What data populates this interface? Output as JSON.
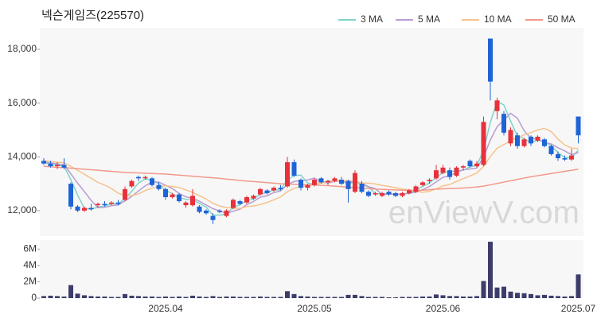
{
  "chart_data": [
    {
      "type": "candlestick",
      "title": "넥슨게임즈(225570)",
      "watermark": "enViewV.com",
      "up_color": "#e8313b",
      "down_color": "#1e64d6",
      "legend": "top-right",
      "grid": false,
      "ylim": [
        11050,
        18800
      ],
      "yticks": [
        {
          "value": 12000,
          "label": "12,000"
        },
        {
          "value": 14000,
          "label": "14,000"
        },
        {
          "value": 16000,
          "label": "16,000"
        },
        {
          "value": 18000,
          "label": "18,000"
        }
      ],
      "open": [
        13850,
        13750,
        13650,
        13700,
        13000,
        12150,
        12000,
        12100,
        12200,
        12250,
        12250,
        12300,
        12400,
        12900,
        13250,
        13200,
        13200,
        12950,
        12800,
        12500,
        12600,
        12200,
        12200,
        12150,
        12000,
        11800,
        12000,
        11800,
        12100,
        12350,
        12300,
        12450,
        12600,
        12750,
        12750,
        12850,
        12900,
        13800,
        13150,
        12850,
        12950,
        13200,
        13050,
        13100,
        13150,
        13100,
        12700,
        13000,
        12700,
        12600,
        12550,
        12700,
        12650,
        12550,
        12650,
        12700,
        12950,
        13100,
        13200,
        13400,
        13500,
        13300,
        13600,
        13850,
        13650,
        13700,
        18400,
        15700,
        15600,
        14500,
        14800,
        14400,
        14750,
        14600,
        14650,
        14400,
        14100,
        13950,
        13900,
        15500
      ],
      "high": [
        13950,
        13850,
        13800,
        13950,
        13050,
        12200,
        12150,
        12250,
        12300,
        12350,
        12350,
        12400,
        12900,
        13150,
        13300,
        13300,
        13250,
        13050,
        12850,
        12650,
        12650,
        12350,
        12800,
        12200,
        12050,
        11900,
        12050,
        12050,
        12450,
        12400,
        12550,
        12600,
        12850,
        12800,
        12900,
        12950,
        14000,
        13900,
        13200,
        13000,
        13200,
        13250,
        13150,
        13250,
        13250,
        13150,
        13500,
        13100,
        12750,
        12700,
        12700,
        12750,
        12700,
        12700,
        12800,
        12950,
        13100,
        13200,
        13700,
        13700,
        13600,
        13650,
        13700,
        13900,
        13850,
        15500,
        18400,
        16200,
        15700,
        15100,
        14900,
        14700,
        14800,
        14800,
        14700,
        14450,
        14200,
        14050,
        14300,
        15500
      ],
      "low": [
        13700,
        13600,
        13550,
        13550,
        12050,
        11950,
        11950,
        12000,
        12100,
        12150,
        12200,
        12200,
        12350,
        12850,
        13100,
        13150,
        12900,
        12750,
        12400,
        12450,
        12300,
        12100,
        12150,
        11900,
        11850,
        11500,
        11900,
        11750,
        12050,
        12200,
        12250,
        12400,
        12550,
        12600,
        12700,
        12750,
        12850,
        13250,
        12750,
        12750,
        12900,
        13000,
        12950,
        13050,
        12950,
        12300,
        12650,
        12650,
        12500,
        12550,
        12500,
        12550,
        12500,
        12500,
        12600,
        12650,
        12900,
        13000,
        13150,
        13350,
        13150,
        13250,
        13500,
        13600,
        13600,
        13650,
        16100,
        15400,
        14800,
        14400,
        14300,
        14350,
        14400,
        14550,
        14350,
        14050,
        13850,
        13850,
        13850,
        14500
      ],
      "close": [
        13750,
        13650,
        13700,
        13600,
        12150,
        12000,
        12100,
        12050,
        12250,
        12200,
        12300,
        12250,
        12800,
        13100,
        13200,
        13250,
        12950,
        12800,
        12500,
        12600,
        12350,
        12300,
        12550,
        11950,
        11900,
        11650,
        11950,
        12000,
        12400,
        12250,
        12500,
        12550,
        12800,
        12650,
        12850,
        12800,
        13800,
        13300,
        12850,
        12950,
        13150,
        13050,
        13100,
        13200,
        13000,
        12800,
        13400,
        12700,
        12550,
        12650,
        12650,
        12600,
        12550,
        12650,
        12750,
        12900,
        13050,
        13150,
        13500,
        13600,
        13250,
        13600,
        13650,
        13650,
        13750,
        15300,
        16800,
        16100,
        14900,
        15000,
        14400,
        14650,
        14500,
        14750,
        14400,
        14100,
        13950,
        13900,
        14050,
        14800
      ],
      "series": [
        {
          "name": "3 MA",
          "color": "#7fd4c9",
          "values": [
            13800,
            13720,
            13700,
            13650,
            13150,
            12580,
            12080,
            12050,
            12130,
            12170,
            12250,
            12250,
            12450,
            12720,
            13030,
            13180,
            13130,
            13000,
            12750,
            12630,
            12480,
            12420,
            12400,
            12270,
            12130,
            11830,
            11830,
            11870,
            12120,
            12220,
            12380,
            12430,
            12620,
            12670,
            12770,
            12770,
            13150,
            13300,
            13320,
            13030,
            12980,
            13050,
            13100,
            13120,
            13100,
            13000,
            13070,
            12970,
            12880,
            12630,
            12620,
            12630,
            12600,
            12600,
            12650,
            12770,
            12900,
            13030,
            13230,
            13420,
            13450,
            13480,
            13500,
            13630,
            13680,
            14230,
            15280,
            16070,
            15930,
            15330,
            14770,
            14680,
            14520,
            14630,
            14550,
            14420,
            14150,
            13980,
            13970,
            14250
          ]
        },
        {
          "name": "5 MA",
          "color": "#b89dd2",
          "values": [
            13800,
            13780,
            13740,
            13700,
            13370,
            13020,
            12710,
            12380,
            12110,
            12120,
            12180,
            12210,
            12360,
            12530,
            12730,
            12920,
            13060,
            13060,
            12940,
            12820,
            12640,
            12510,
            12460,
            12350,
            12210,
            12070,
            11990,
            11890,
            11980,
            12050,
            12220,
            12340,
            12500,
            12550,
            12670,
            12730,
            12980,
            13080,
            13120,
            13140,
            13210,
            13060,
            13020,
            13090,
            13100,
            13030,
            13100,
            13020,
            12890,
            12820,
            12590,
            12630,
            12600,
            12620,
            12640,
            12690,
            12780,
            12900,
            13070,
            13240,
            13300,
            13420,
            13520,
            13550,
            13580,
            13990,
            14630,
            15120,
            15370,
            15620,
            15440,
            14970,
            14690,
            14660,
            14540,
            14480,
            14340,
            14220,
            14080,
            14160
          ]
        },
        {
          "name": "10 MA",
          "color": "#f6c28c",
          "values": [
            13850,
            13830,
            13800,
            13780,
            13650,
            13500,
            13350,
            13200,
            13050,
            12950,
            12820,
            12650,
            12560,
            12560,
            12620,
            12750,
            12830,
            12910,
            12920,
            12900,
            12860,
            12770,
            12680,
            12560,
            12430,
            12270,
            12170,
            12110,
            12100,
            12080,
            12150,
            12170,
            12230,
            12300,
            12400,
            12510,
            12700,
            12830,
            12880,
            12920,
            12980,
            13030,
            13060,
            13110,
            13120,
            13120,
            13080,
            13030,
            13020,
            12990,
            12940,
            12900,
            12850,
            12800,
            12780,
            12720,
            12680,
            12720,
            12810,
            12920,
            12970,
            13080,
            13190,
            13290,
            13400,
            13640,
            14010,
            14320,
            14460,
            14600,
            14710,
            14820,
            14900,
            15000,
            15060,
            14940,
            14660,
            14440,
            14330,
            14310
          ]
        },
        {
          "name": "50 MA",
          "color": "#f2998a",
          "values": [
            13650,
            13630,
            13610,
            13600,
            13580,
            13560,
            13540,
            13520,
            13500,
            13480,
            13460,
            13440,
            13420,
            13410,
            13400,
            13390,
            13380,
            13370,
            13360,
            13340,
            13320,
            13300,
            13280,
            13260,
            13240,
            13220,
            13200,
            13170,
            13150,
            13120,
            13100,
            13080,
            13060,
            13040,
            13020,
            13000,
            12990,
            12980,
            12970,
            12960,
            12950,
            12940,
            12930,
            12910,
            12890,
            12870,
            12860,
            12840,
            12820,
            12800,
            12790,
            12780,
            12770,
            12760,
            12750,
            12750,
            12760,
            12780,
            12800,
            12810,
            12820,
            12830,
            12840,
            12860,
            12880,
            12910,
            12960,
            13010,
            13060,
            13110,
            13160,
            13210,
            13260,
            13300,
            13340,
            13380,
            13420,
            13460,
            13500,
            13540
          ]
        }
      ]
    },
    {
      "type": "bar",
      "color": "#3c3d6b",
      "ylim": [
        0,
        7100000
      ],
      "yticks": [
        0,
        {
          "value": 2000000,
          "label": "2M"
        },
        {
          "value": 4000000,
          "label": "4M"
        },
        {
          "value": 6000000,
          "label": "6M"
        }
      ],
      "categories": [
        null,
        null,
        null,
        null,
        null,
        null,
        null,
        null,
        null,
        null,
        null,
        null,
        null,
        null,
        null,
        null,
        null,
        null,
        "2025.04",
        null,
        null,
        null,
        null,
        null,
        null,
        null,
        null,
        null,
        null,
        null,
        null,
        null,
        null,
        null,
        null,
        null,
        null,
        null,
        null,
        null,
        "2025.05",
        null,
        null,
        null,
        null,
        null,
        null,
        null,
        null,
        null,
        null,
        null,
        null,
        null,
        null,
        null,
        null,
        null,
        null,
        "2025.06",
        null,
        null,
        null,
        null,
        null,
        null,
        null,
        null,
        null,
        null,
        null,
        null,
        null,
        null,
        null,
        null,
        null,
        null,
        null,
        "2025.07"
      ],
      "values": [
        250000,
        300000,
        250000,
        200000,
        1600000,
        550000,
        350000,
        250000,
        200000,
        200000,
        150000,
        150000,
        500000,
        300000,
        250000,
        200000,
        200000,
        150000,
        200000,
        150000,
        200000,
        150000,
        300000,
        200000,
        150000,
        250000,
        150000,
        200000,
        200000,
        150000,
        150000,
        150000,
        200000,
        150000,
        150000,
        150000,
        850000,
        500000,
        250000,
        200000,
        150000,
        150000,
        150000,
        150000,
        150000,
        400000,
        400000,
        250000,
        150000,
        150000,
        150000,
        100000,
        100000,
        150000,
        150000,
        150000,
        200000,
        200000,
        450000,
        350000,
        250000,
        250000,
        200000,
        200000,
        250000,
        2100000,
        6900000,
        1300000,
        1400000,
        800000,
        650000,
        600000,
        500000,
        350000,
        400000,
        300000,
        250000,
        200000,
        250000,
        2900000
      ]
    }
  ]
}
